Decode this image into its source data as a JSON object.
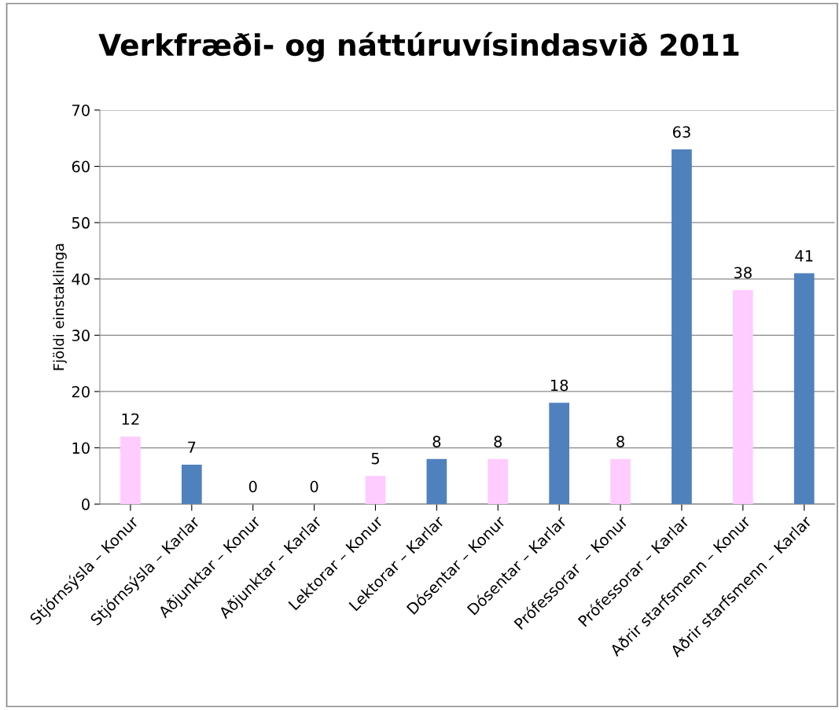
{
  "chart_data": {
    "type": "bar",
    "title": "Verkfræði- og náttúruvísindasvið 2011",
    "ylabel": "Fjöldi einstaklinga",
    "categories": [
      "Stjórnsýsla – Konur",
      "Stjórnsýsla – Karlar",
      "Aðjunktar – Konur",
      "Aðjunktar – Karlar",
      "Lektorar – Konur",
      "Lektorar – Karlar",
      "Dósentar – Konur",
      "Dósentar – Karlar",
      "Prófessorar  – Konur",
      "Prófessorar – Karlar",
      "Aðrir starfsmenn – Konur",
      "Aðrir starfsmenn – Karlar"
    ],
    "values": [
      12,
      7,
      0,
      0,
      5,
      8,
      8,
      18,
      8,
      63,
      38,
      41
    ],
    "colors": [
      "#ffccff",
      "#4f81bd",
      "#ffccff",
      "#4f81bd",
      "#ffccff",
      "#4f81bd",
      "#ffccff",
      "#4f81bd",
      "#ffccff",
      "#4f81bd",
      "#ffccff",
      "#4f81bd"
    ],
    "ylim": [
      0,
      70
    ],
    "yticks": [
      0,
      10,
      20,
      30,
      40,
      50,
      60,
      70
    ],
    "grid": "y",
    "data_labels": true,
    "legend": false
  }
}
